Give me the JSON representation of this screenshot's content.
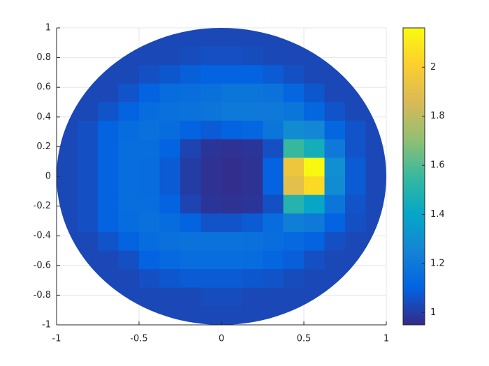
{
  "chart_data": {
    "type": "heatmap",
    "x": [
      -0.9375,
      -0.8125,
      -0.6875,
      -0.5625,
      -0.4375,
      -0.3125,
      -0.1875,
      -0.0625,
      0.0625,
      0.1875,
      0.3125,
      0.4375,
      0.5625,
      0.6875,
      0.8125,
      0.9375
    ],
    "y": [
      0.9375,
      0.8125,
      0.6875,
      0.5625,
      0.4375,
      0.3125,
      0.1875,
      0.0625,
      -0.0625,
      -0.1875,
      -0.3125,
      -0.4375,
      -0.5625,
      -0.6875,
      -0.8125,
      -0.9375
    ],
    "values": [
      [
        null,
        null,
        null,
        null,
        1.03,
        1.03,
        1.03,
        1.03,
        1.03,
        1.03,
        1.03,
        1.03,
        null,
        null,
        null,
        null
      ],
      [
        null,
        null,
        1.03,
        1.03,
        1.03,
        1.03,
        1.04,
        1.05,
        1.05,
        1.04,
        1.03,
        1.03,
        1.03,
        1.03,
        null,
        null
      ],
      [
        null,
        1.03,
        1.03,
        1.03,
        1.05,
        1.07,
        1.09,
        1.1,
        1.1,
        1.1,
        1.08,
        1.05,
        1.03,
        1.03,
        1.03,
        null
      ],
      [
        null,
        1.03,
        1.03,
        1.06,
        1.1,
        1.14,
        1.15,
        1.16,
        1.18,
        1.18,
        1.17,
        1.12,
        1.07,
        1.03,
        1.03,
        null
      ],
      [
        1.03,
        1.03,
        1.06,
        1.1,
        1.14,
        1.16,
        1.17,
        1.18,
        1.2,
        1.2,
        1.2,
        1.18,
        1.12,
        1.06,
        1.03,
        1.03
      ],
      [
        1.03,
        1.05,
        1.1,
        1.14,
        1.16,
        1.14,
        1.1,
        1.08,
        1.1,
        1.12,
        1.18,
        1.28,
        1.26,
        1.12,
        1.06,
        1.03
      ],
      [
        1.03,
        1.05,
        1.1,
        1.15,
        1.15,
        1.1,
        1.02,
        0.98,
        0.97,
        0.98,
        1.05,
        1.55,
        1.45,
        1.2,
        1.06,
        1.03
      ],
      [
        1.03,
        1.05,
        1.1,
        1.15,
        1.14,
        1.08,
        1.0,
        0.97,
        0.96,
        0.97,
        1.1,
        1.95,
        2.15,
        1.3,
        1.08,
        1.03
      ],
      [
        1.03,
        1.05,
        1.1,
        1.15,
        1.14,
        1.08,
        1.0,
        0.97,
        0.96,
        0.97,
        1.1,
        1.9,
        2.05,
        1.28,
        1.08,
        1.03
      ],
      [
        1.03,
        1.05,
        1.1,
        1.15,
        1.15,
        1.1,
        1.02,
        0.98,
        0.97,
        0.98,
        1.05,
        1.5,
        1.4,
        1.18,
        1.06,
        1.03
      ],
      [
        1.03,
        1.05,
        1.1,
        1.14,
        1.16,
        1.14,
        1.1,
        1.06,
        1.06,
        1.08,
        1.14,
        1.22,
        1.2,
        1.1,
        1.05,
        1.03
      ],
      [
        1.03,
        1.03,
        1.06,
        1.1,
        1.14,
        1.16,
        1.17,
        1.17,
        1.17,
        1.16,
        1.15,
        1.13,
        1.1,
        1.05,
        1.03,
        1.03
      ],
      [
        null,
        1.03,
        1.03,
        1.05,
        1.1,
        1.13,
        1.15,
        1.15,
        1.15,
        1.14,
        1.12,
        1.09,
        1.05,
        1.03,
        1.03,
        null
      ],
      [
        null,
        1.03,
        1.03,
        1.03,
        1.05,
        1.07,
        1.08,
        1.08,
        1.08,
        1.07,
        1.06,
        1.04,
        1.03,
        1.03,
        1.03,
        null
      ],
      [
        null,
        null,
        1.03,
        1.03,
        1.03,
        1.03,
        1.03,
        1.04,
        1.04,
        1.03,
        1.03,
        1.03,
        1.03,
        1.03,
        null,
        null
      ],
      [
        null,
        null,
        null,
        null,
        1.03,
        1.03,
        1.03,
        1.03,
        1.03,
        1.03,
        1.03,
        1.03,
        null,
        null,
        null,
        null
      ]
    ],
    "xlim": [
      -1,
      1
    ],
    "xticks": [
      -1,
      -0.5,
      0,
      0.5,
      1
    ],
    "ylim": [
      -1,
      1
    ],
    "yticks": [
      -1,
      -0.8,
      -0.6,
      -0.4,
      -0.2,
      0,
      0.2,
      0.4,
      0.6,
      0.8,
      1
    ],
    "clim": [
      0.95,
      2.16
    ],
    "cticks": [
      1,
      1.2,
      1.4,
      1.6,
      1.8,
      2
    ],
    "colormap": [
      "#352a87",
      "#0363e1",
      "#1485d4",
      "#06a7c6",
      "#38b99e",
      "#92bf73",
      "#d9ba56",
      "#fcce2e",
      "#f9fb0e"
    ],
    "grid": true
  }
}
